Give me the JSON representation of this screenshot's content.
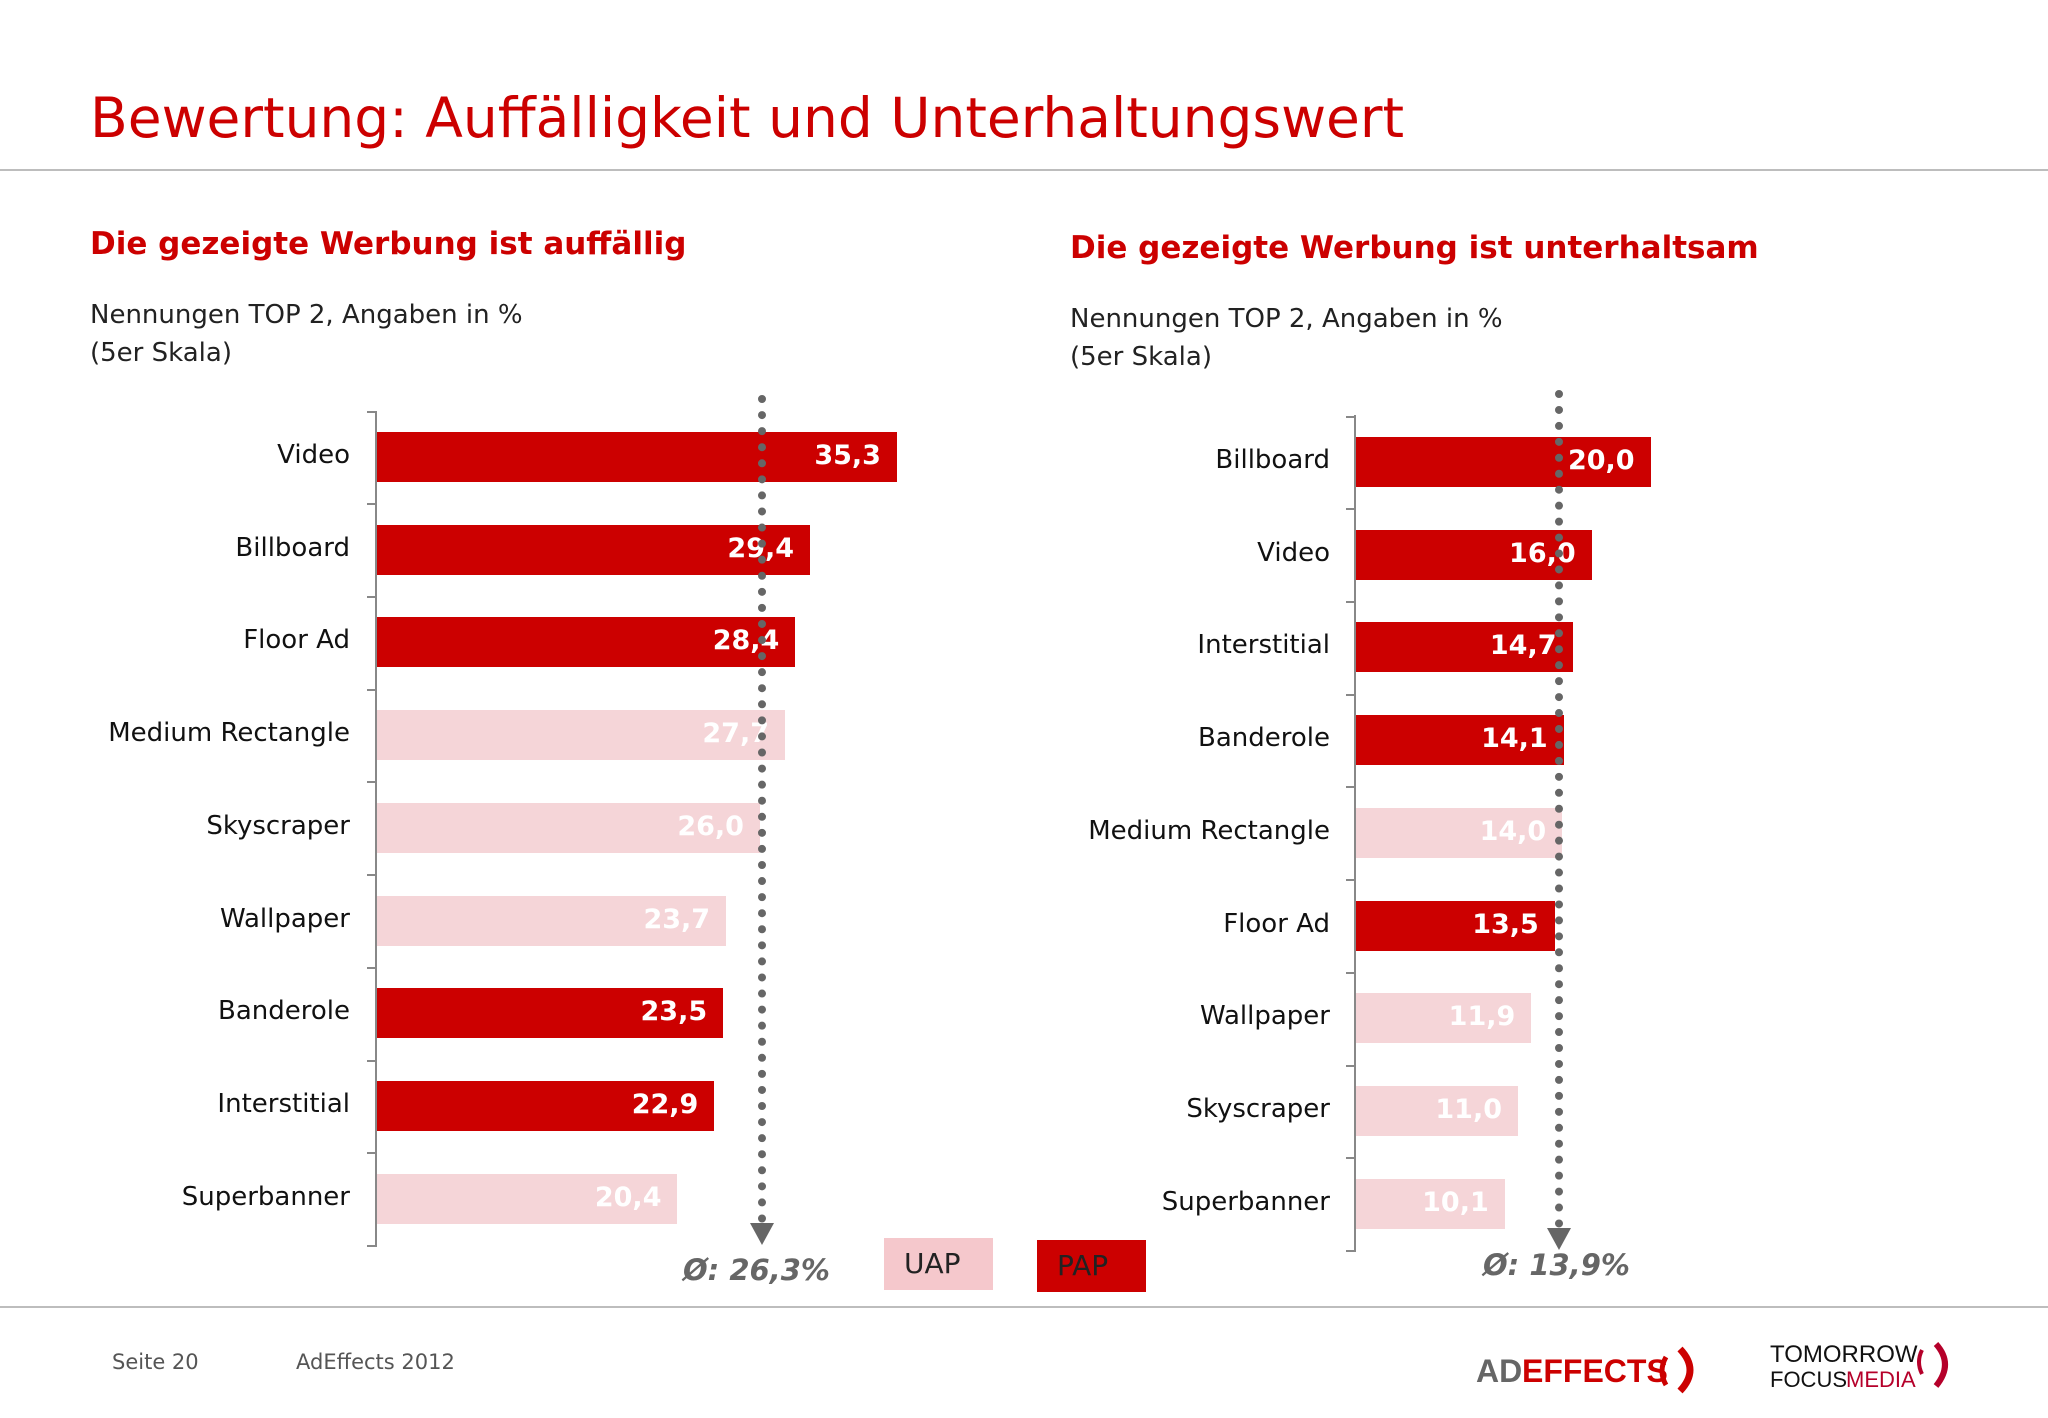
{
  "title": "Bewertung: Auffälligkeit und Unterhaltungswert",
  "colors": {
    "PAP": "#cc0000",
    "UAP": "#f5d5d8",
    "accent": "#cc0000",
    "average_line": "#666666"
  },
  "legend": {
    "uap": "UAP",
    "pap": "PAP"
  },
  "chart_data": [
    {
      "type": "bar",
      "orientation": "horizontal",
      "title": "Die gezeigte Werbung ist auffällig",
      "subtitle_lines": [
        "Nennungen TOP 2, Angaben in %",
        "(5er Skala)"
      ],
      "categories": [
        "Video",
        "Billboard",
        "Floor Ad",
        "Medium Rectangle",
        "Skyscraper",
        "Wallpaper",
        "Banderole",
        "Interstitial",
        "Superbanner"
      ],
      "values": [
        35.3,
        29.4,
        28.4,
        27.7,
        26.0,
        23.7,
        23.5,
        22.9,
        20.4
      ],
      "labels": [
        "35,3",
        "29,4",
        "28,4",
        "27,7",
        "26,0",
        "23,7",
        "23,5",
        "22,9",
        "20,4"
      ],
      "groups": [
        "PAP",
        "PAP",
        "PAP",
        "UAP",
        "UAP",
        "UAP",
        "PAP",
        "PAP",
        "UAP"
      ],
      "average": 26.3,
      "average_label": "Ø: 26,3%",
      "xlim": [
        0,
        40
      ],
      "grid": false
    },
    {
      "type": "bar",
      "orientation": "horizontal",
      "title": "Die gezeigte Werbung ist unterhaltsam",
      "subtitle_lines": [
        "Nennungen TOP 2, Angaben in %",
        "(5er Skala)"
      ],
      "categories": [
        "Billboard",
        "Video",
        "Interstitial",
        "Banderole",
        "Medium Rectangle",
        "Floor Ad",
        "Wallpaper",
        "Skyscraper",
        "Superbanner"
      ],
      "values": [
        20.0,
        16.0,
        14.7,
        14.1,
        14.0,
        13.5,
        11.9,
        11.0,
        10.1
      ],
      "labels": [
        "20,0",
        "16,0",
        "14,7",
        "14,1",
        "14,0",
        "13,5",
        "11,9",
        "11,0",
        "10,1"
      ],
      "groups": [
        "PAP",
        "PAP",
        "PAP",
        "PAP",
        "UAP",
        "PAP",
        "UAP",
        "UAP",
        "UAP"
      ],
      "average": 13.9,
      "average_label": "Ø: 13,9%",
      "xlim": [
        0,
        40
      ],
      "grid": false
    }
  ],
  "footer": {
    "page": "Seite 20",
    "source": "AdEffects 2012"
  },
  "logos": {
    "adeffects": "AD EFFECTS",
    "tomorrow": "TOMORROW FOCUS MEDIA"
  }
}
